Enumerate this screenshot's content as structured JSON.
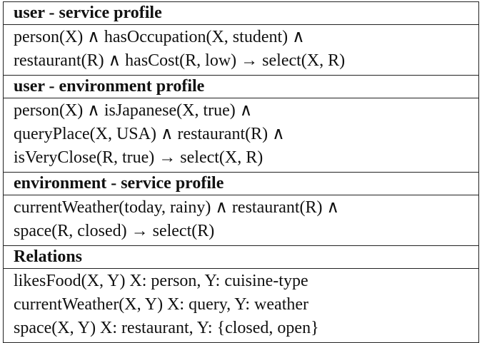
{
  "sections": [
    {
      "title": "user - service profile",
      "lines": [
        "person(X) ∧ hasOccupation(X, student) ∧",
        "restaurant(R) ∧ hasCost(R, low)  →  select(X, R)"
      ]
    },
    {
      "title": "user - environment profile",
      "lines": [
        "person(X)  ∧  isJapanese(X, true) ∧",
        "queryPlace(X, USA)  ∧  restaurant(R)  ∧",
        "isVeryClose(R, true) → select(X, R)"
      ]
    },
    {
      "title": "environment - service profile",
      "lines": [
        "currentWeather(today, rainy)  ∧  restaurant(R) ∧",
        "space(R, closed)  →  select(R)"
      ]
    },
    {
      "title": "Relations",
      "lines": [
        "likesFood(X, Y) X: person, Y: cuisine-type",
        "currentWeather(X, Y) X: query, Y: weather",
        "space(X, Y) X: restaurant, Y: {closed, open}"
      ]
    }
  ]
}
